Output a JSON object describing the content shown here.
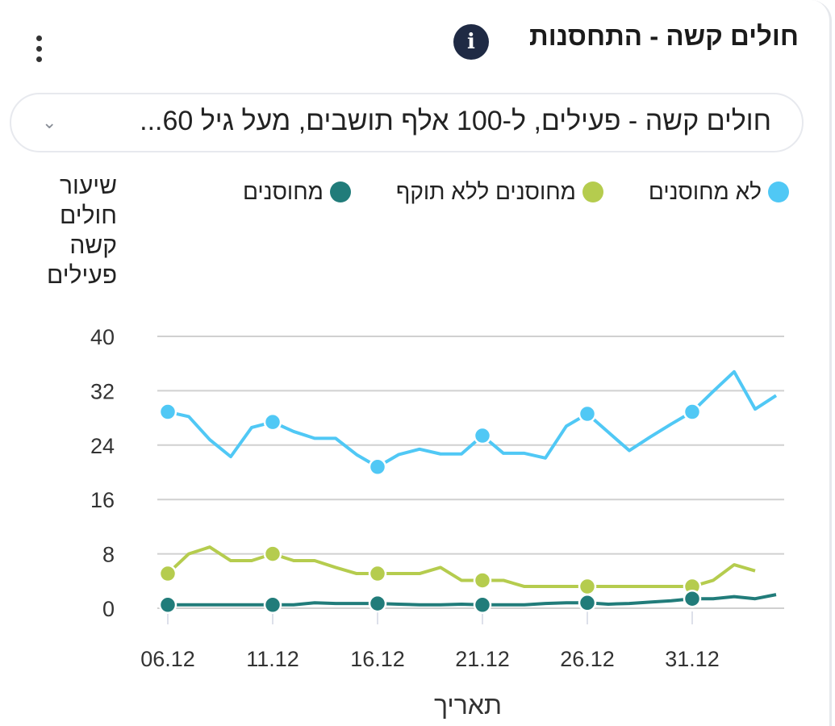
{
  "header": {
    "title": "חולים קשה - התחסנות",
    "info_icon": "info-icon",
    "menu_icon": "kebab-menu-icon"
  },
  "filter": {
    "selected": "חולים קשה - פעילים, ל-100 אלף תושבים, מעל גיל 60...",
    "icon": "chevron-down-icon"
  },
  "chart_data": {
    "type": "line",
    "ylabel": "שיעור חולים קשה פעילים",
    "xlabel": "תאריך",
    "ylim": [
      0,
      40
    ],
    "yticks": [
      "0",
      "8",
      "16",
      "24",
      "32",
      "40"
    ],
    "grid": true,
    "legend": "top",
    "x": [
      "06.12",
      "07.12",
      "08.12",
      "09.12",
      "10.12",
      "11.12",
      "12.12",
      "13.12",
      "14.12",
      "15.12",
      "16.12",
      "17.12",
      "18.12",
      "19.12",
      "20.12",
      "21.12",
      "22.12",
      "23.12",
      "24.12",
      "25.12",
      "26.12",
      "27.12",
      "28.12",
      "29.12",
      "30.12",
      "31.12",
      "01.01",
      "02.01",
      "03.01",
      "04.01"
    ],
    "xticks": [
      "06.12",
      "11.12",
      "16.12",
      "21.12",
      "26.12",
      "31.12"
    ],
    "series": [
      {
        "name": "לא מחוסנים",
        "color": "#50c8f5",
        "values": [
          28.9,
          28.2,
          24.8,
          22.3,
          26.6,
          27.4,
          26.0,
          25.0,
          25.0,
          22.6,
          20.8,
          22.6,
          23.4,
          22.7,
          22.7,
          25.4,
          22.8,
          22.8,
          22.1,
          26.8,
          28.6,
          25.9,
          23.2,
          25.2,
          27.1,
          28.9,
          31.9,
          34.8,
          29.3,
          31.3
        ]
      },
      {
        "name": "מחוסנים ללא תוקף",
        "color": "#b5cc4e",
        "values": [
          5.1,
          8.0,
          9.0,
          7.0,
          7.0,
          8.0,
          7.0,
          7.0,
          6.0,
          5.1,
          5.1,
          5.1,
          5.1,
          6.0,
          4.1,
          4.1,
          4.1,
          3.2,
          3.2,
          3.2,
          3.2,
          3.2,
          3.2,
          3.2,
          3.2,
          3.2,
          4.1,
          6.4,
          5.5,
          null
        ]
      },
      {
        "name": "מחוסנים",
        "color": "#217c7a",
        "values": [
          0.5,
          0.5,
          0.5,
          0.5,
          0.5,
          0.5,
          0.5,
          0.8,
          0.7,
          0.7,
          0.7,
          0.6,
          0.5,
          0.5,
          0.6,
          0.5,
          0.5,
          0.5,
          0.7,
          0.8,
          0.8,
          0.6,
          0.7,
          0.9,
          1.1,
          1.4,
          1.4,
          1.7,
          1.4,
          2.0
        ]
      }
    ]
  }
}
